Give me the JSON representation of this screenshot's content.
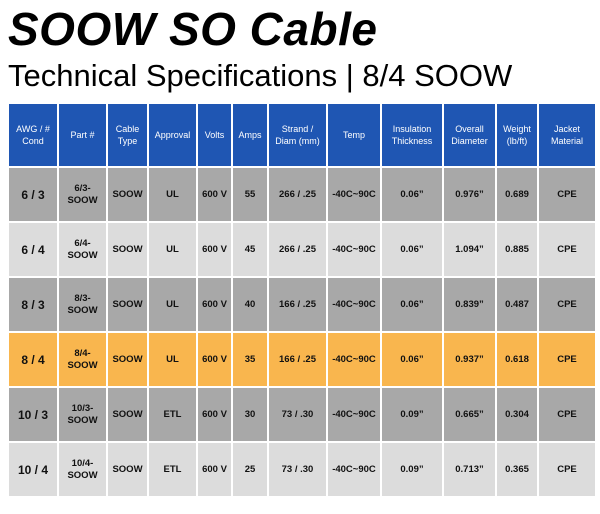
{
  "header": {
    "title": "SOOW SO Cable",
    "subtitle": "Technical Specifications | 8/4 SOOW"
  },
  "table": {
    "columns": [
      "AWG / # Cond",
      "Part #",
      "Cable Type",
      "Approval",
      "Volts",
      "Amps",
      "Strand / Diam (mm)",
      "Temp",
      "Insulation Thickness",
      "Overall Diameter",
      "Weight (lb/ft)",
      "Jacket Material"
    ],
    "rows": [
      [
        "6 / 3",
        "6/3-SOOW",
        "SOOW",
        "UL",
        "600 V",
        "55",
        "266 / .25",
        "-40C~90C",
        "0.06”",
        "0.976”",
        "0.689",
        "CPE"
      ],
      [
        "6 / 4",
        "6/4-SOOW",
        "SOOW",
        "UL",
        "600 V",
        "45",
        "266 / .25",
        "-40C~90C",
        "0.06”",
        "1.094”",
        "0.885",
        "CPE"
      ],
      [
        "8 / 3",
        "8/3-SOOW",
        "SOOW",
        "UL",
        "600 V",
        "40",
        "166 / .25",
        "-40C~90C",
        "0.06”",
        "0.839”",
        "0.487",
        "CPE"
      ],
      [
        "8 / 4",
        "8/4-SOOW",
        "SOOW",
        "UL",
        "600 V",
        "35",
        "166 / .25",
        "-40C~90C",
        "0.06”",
        "0.937”",
        "0.618",
        "CPE"
      ],
      [
        "10 / 3",
        "10/3-SOOW",
        "SOOW",
        "ETL",
        "600 V",
        "30",
        "73 / .30",
        "-40C~90C",
        "0.09”",
        "0.665”",
        "0.304",
        "CPE"
      ],
      [
        "10 / 4",
        "10/4-SOOW",
        "SOOW",
        "ETL",
        "600 V",
        "25",
        "73 / .30",
        "-40C~90C",
        "0.09”",
        "0.713”",
        "0.365",
        "CPE"
      ]
    ]
  }
}
